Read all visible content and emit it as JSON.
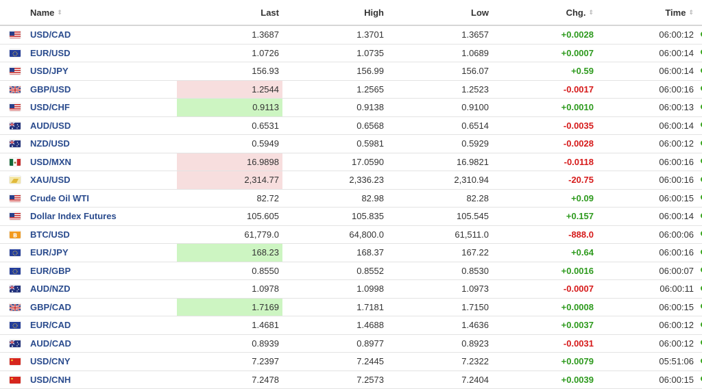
{
  "headers": {
    "name": "Name",
    "last": "Last",
    "high": "High",
    "low": "Low",
    "chg": "Chg.",
    "time": "Time"
  },
  "colors": {
    "positive": "#2e9a1e",
    "negative": "#d61a1a",
    "highlight_down": "#f7dede",
    "highlight_up": "#cdf5c2",
    "link": "#2a4b8d"
  },
  "rows": [
    {
      "name": "USD/CAD",
      "flag": "us",
      "last": "1.3687",
      "high": "1.3701",
      "low": "1.3657",
      "chg": "+0.0028",
      "time": "06:00:12",
      "dir": "pos",
      "hl": ""
    },
    {
      "name": "EUR/USD",
      "flag": "eu",
      "last": "1.0726",
      "high": "1.0735",
      "low": "1.0689",
      "chg": "+0.0007",
      "time": "06:00:14",
      "dir": "pos",
      "hl": ""
    },
    {
      "name": "USD/JPY",
      "flag": "us",
      "last": "156.93",
      "high": "156.99",
      "low": "156.07",
      "chg": "+0.59",
      "time": "06:00:14",
      "dir": "pos",
      "hl": ""
    },
    {
      "name": "GBP/USD",
      "flag": "gb",
      "last": "1.2544",
      "high": "1.2565",
      "low": "1.2523",
      "chg": "-0.0017",
      "time": "06:00:16",
      "dir": "neg",
      "hl": "down"
    },
    {
      "name": "USD/CHF",
      "flag": "us",
      "last": "0.9113",
      "high": "0.9138",
      "low": "0.9100",
      "chg": "+0.0010",
      "time": "06:00:13",
      "dir": "pos",
      "hl": "up"
    },
    {
      "name": "AUD/USD",
      "flag": "au",
      "last": "0.6531",
      "high": "0.6568",
      "low": "0.6514",
      "chg": "-0.0035",
      "time": "06:00:14",
      "dir": "neg",
      "hl": ""
    },
    {
      "name": "NZD/USD",
      "flag": "au",
      "last": "0.5949",
      "high": "0.5981",
      "low": "0.5929",
      "chg": "-0.0028",
      "time": "06:00:12",
      "dir": "neg",
      "hl": ""
    },
    {
      "name": "USD/MXN",
      "flag": "mx",
      "last": "16.9898",
      "high": "17.0590",
      "low": "16.9821",
      "chg": "-0.0118",
      "time": "06:00:16",
      "dir": "neg",
      "hl": "down"
    },
    {
      "name": "XAU/USD",
      "flag": "gold",
      "last": "2,314.77",
      "high": "2,336.23",
      "low": "2,310.94",
      "chg": "-20.75",
      "time": "06:00:16",
      "dir": "neg",
      "hl": "down"
    },
    {
      "name": "Crude Oil WTI",
      "flag": "us",
      "last": "82.72",
      "high": "82.98",
      "low": "82.28",
      "chg": "+0.09",
      "time": "06:00:15",
      "dir": "pos",
      "hl": ""
    },
    {
      "name": "Dollar Index Futures",
      "flag": "us",
      "last": "105.605",
      "high": "105.835",
      "low": "105.545",
      "chg": "+0.157",
      "time": "06:00:14",
      "dir": "pos",
      "hl": ""
    },
    {
      "name": "BTC/USD",
      "flag": "btc",
      "last": "61,779.0",
      "high": "64,800.0",
      "low": "61,511.0",
      "chg": "-888.0",
      "time": "06:00:06",
      "dir": "neg",
      "hl": ""
    },
    {
      "name": "EUR/JPY",
      "flag": "eu",
      "last": "168.23",
      "high": "168.37",
      "low": "167.22",
      "chg": "+0.64",
      "time": "06:00:16",
      "dir": "pos",
      "hl": "up"
    },
    {
      "name": "EUR/GBP",
      "flag": "eu",
      "last": "0.8550",
      "high": "0.8552",
      "low": "0.8530",
      "chg": "+0.0016",
      "time": "06:00:07",
      "dir": "pos",
      "hl": ""
    },
    {
      "name": "AUD/NZD",
      "flag": "au",
      "last": "1.0978",
      "high": "1.0998",
      "low": "1.0973",
      "chg": "-0.0007",
      "time": "06:00:11",
      "dir": "neg",
      "hl": ""
    },
    {
      "name": "GBP/CAD",
      "flag": "gb",
      "last": "1.7169",
      "high": "1.7181",
      "low": "1.7150",
      "chg": "+0.0008",
      "time": "06:00:15",
      "dir": "pos",
      "hl": "up"
    },
    {
      "name": "EUR/CAD",
      "flag": "eu",
      "last": "1.4681",
      "high": "1.4688",
      "low": "1.4636",
      "chg": "+0.0037",
      "time": "06:00:12",
      "dir": "pos",
      "hl": ""
    },
    {
      "name": "AUD/CAD",
      "flag": "au",
      "last": "0.8939",
      "high": "0.8977",
      "low": "0.8923",
      "chg": "-0.0031",
      "time": "06:00:12",
      "dir": "neg",
      "hl": ""
    },
    {
      "name": "USD/CNY",
      "flag": "cn",
      "last": "7.2397",
      "high": "7.2445",
      "low": "7.2322",
      "chg": "+0.0079",
      "time": "05:51:06",
      "dir": "pos",
      "hl": ""
    },
    {
      "name": "USD/CNH",
      "flag": "cn",
      "last": "7.2478",
      "high": "7.2573",
      "low": "7.2404",
      "chg": "+0.0039",
      "time": "06:00:15",
      "dir": "pos",
      "hl": ""
    }
  ]
}
